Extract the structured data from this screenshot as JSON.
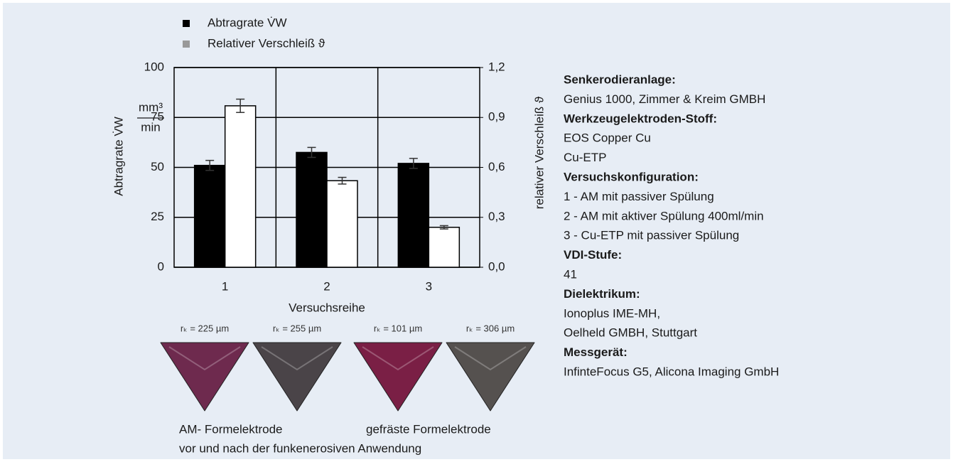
{
  "chart_data": {
    "type": "bar",
    "categories": [
      "1",
      "2",
      "3"
    ],
    "x_label": "Versuchsreihe",
    "y_label": "Abtragrate V̇W",
    "y_unit_numerator": "mm³",
    "y_unit_denominator": "min",
    "y2_label": "relativer Verschleiß ϑ",
    "ylim": [
      0,
      100
    ],
    "yticks": [
      0,
      25,
      50,
      75,
      100
    ],
    "y2lim": [
      0,
      1.2
    ],
    "y2ticks": [
      {
        "value": 0,
        "label": "0,0"
      },
      {
        "value": 0.3,
        "label": "0,3"
      },
      {
        "value": 0.6,
        "label": "0,6"
      },
      {
        "value": 0.9,
        "label": "0,9"
      },
      {
        "value": 1.2,
        "label": "1,2"
      }
    ],
    "grid": true,
    "series": [
      {
        "name": "Abtragrate V̇W",
        "color": "#000000",
        "bar_fill": "#000000",
        "values": [
          51,
          57.5,
          52
        ],
        "errors": [
          2.5,
          2.5,
          2.5
        ]
      },
      {
        "name": "Relativer Verschleiß ϑ",
        "color": "#999999",
        "bar_fill": "#ffffff",
        "axis": "y2",
        "values": [
          0.97,
          0.52,
          0.24
        ],
        "errors": [
          0.04,
          0.02,
          0.01
        ]
      }
    ]
  },
  "images": [
    {
      "label": "rₖ = 225 µm",
      "tint": "#6e2a4e"
    },
    {
      "label": "rₖ = 255 µm",
      "tint": "#4a4448"
    },
    {
      "label": "rₖ = 101 µm",
      "tint": "#7a1f45"
    },
    {
      "label": "rₖ = 306 µm",
      "tint": "#55514f"
    }
  ],
  "captions": [
    "AM- Formelektrode",
    "gefräste Formelektrode",
    "vor und nach der funkenerosiven Anwendung"
  ],
  "info": [
    {
      "heading": "Senkerodieranlage:",
      "lines": [
        "Genius 1000, Zimmer & Kreim GMBH"
      ]
    },
    {
      "heading": "Werkzeugelektroden-Stoff:",
      "lines": [
        "EOS Copper Cu",
        "Cu-ETP"
      ]
    },
    {
      "heading": "Versuchskonfiguration:",
      "lines": [
        "1 - AM mit passiver Spülung",
        "2 - AM mit aktiver Spülung 400ml/min",
        "3 - Cu-ETP mit passiver Spülung"
      ]
    },
    {
      "heading": "VDI-Stufe:",
      "lines": [
        "41"
      ]
    },
    {
      "heading": "Dielektrikum:",
      "lines": [
        "Ionoplus IME-MH,",
        "Oelheld GMBH, Stuttgart"
      ]
    },
    {
      "heading": "Messgerät:",
      "lines": [
        "InfinteFocus G5, Alicona Imaging GmbH"
      ]
    }
  ]
}
